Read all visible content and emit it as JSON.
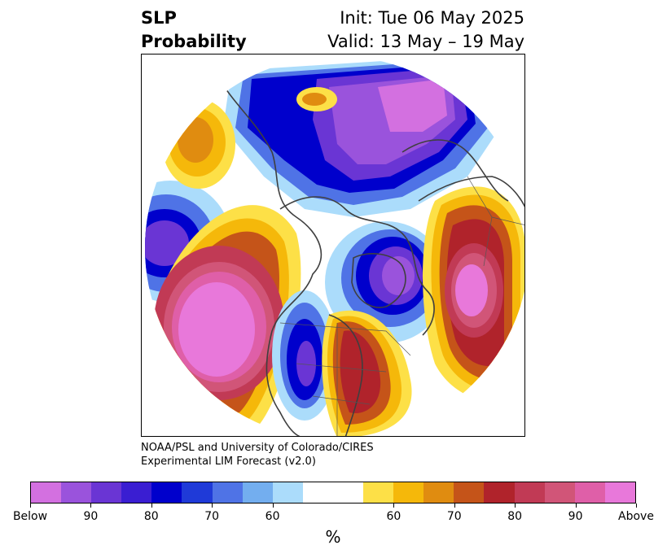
{
  "header": {
    "title_line1": "SLP",
    "title_line2": "Probability",
    "init_label": "Init: Tue 06 May 2025",
    "valid_label": "Valid: 13 May – 19 May"
  },
  "credit": {
    "line1": "NOAA/PSL and University of Colorado/CIRES",
    "line2": "Experimental LIM Forecast (v2.0)"
  },
  "colorbar": {
    "unit": "%",
    "below_colors": [
      "#d370e0",
      "#9a53dc",
      "#6a35d4",
      "#3a1ed2",
      "#0000cc",
      "#1f3ad8",
      "#4f73e6",
      "#73aeef",
      "#abdcfb"
    ],
    "neutral_color": "#ffffff",
    "above_colors": [
      "#fde047",
      "#f5b80a",
      "#e08c10",
      "#c55419",
      "#b0232b",
      "#c13a55",
      "#d15578",
      "#df5fa8",
      "#e878da"
    ],
    "tick_labels": [
      "Below",
      "90",
      "80",
      "70",
      "60",
      "60",
      "70",
      "80",
      "90",
      "Above"
    ]
  },
  "map": {
    "projection": "north-polar-stereographic",
    "region": "North America and Arctic",
    "features": [
      {
        "name": "Arctic / Siberia",
        "category": "below",
        "level": "90"
      },
      {
        "name": "Hudson Bay",
        "category": "below",
        "level": "80"
      },
      {
        "name": "Western US",
        "category": "below",
        "level": "80"
      },
      {
        "name": "Gulf of Alaska",
        "category": "below",
        "level": "80"
      },
      {
        "name": "Northeast Pacific",
        "category": "above",
        "level": "Above"
      },
      {
        "name": "North Atlantic",
        "category": "above",
        "level": "90"
      },
      {
        "name": "Eastern US",
        "category": "above",
        "level": "80"
      },
      {
        "name": "Bering Sea",
        "category": "above",
        "level": "70"
      }
    ]
  }
}
